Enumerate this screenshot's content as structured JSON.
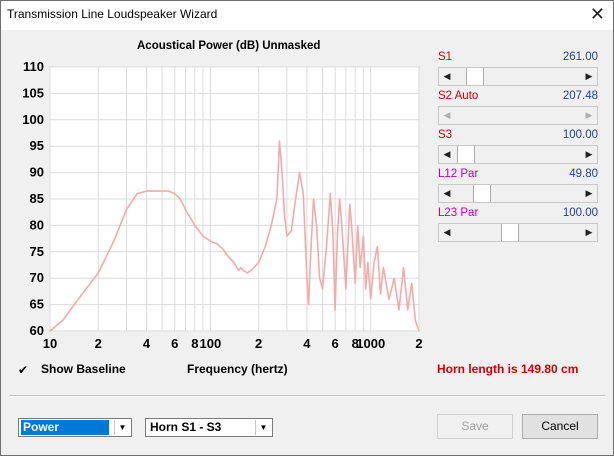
{
  "window": {
    "title": "Transmission Line Loudspeaker Wizard",
    "close_glyph": "✕"
  },
  "chart_data": {
    "type": "line",
    "title": "Acoustical Power (dB)   Unmasked",
    "xlabel": "Frequency (hertz)",
    "ylabel": "",
    "xscale": "log",
    "xlim": [
      10,
      2000
    ],
    "ylim": [
      60,
      110
    ],
    "yticks": [
      "110",
      "105",
      "100",
      "95",
      "90",
      "85",
      "80",
      "75",
      "70",
      "65",
      "60"
    ],
    "xticks": [
      "10",
      "2",
      "4",
      "6",
      "8",
      "100",
      "2",
      "4",
      "6",
      "8",
      "1000",
      "2"
    ],
    "grid": true,
    "series": [
      {
        "color": "#f4aaaa",
        "x": [
          10,
          12,
          15,
          20,
          25,
          30,
          35,
          40,
          45,
          50,
          55,
          60,
          65,
          70,
          80,
          90,
          100,
          110,
          120,
          130,
          140,
          150,
          155,
          160,
          170,
          180,
          200,
          220,
          240,
          260,
          270,
          280,
          290,
          300,
          320,
          340,
          360,
          380,
          400,
          410,
          420,
          440,
          460,
          480,
          500,
          530,
          560,
          580,
          600,
          620,
          640,
          660,
          700,
          740,
          760,
          800,
          830,
          860,
          900,
          930,
          960,
          1000,
          1050,
          1100,
          1150,
          1200,
          1300,
          1400,
          1500,
          1600,
          1700,
          1800,
          1900,
          2000
        ],
        "y": [
          60,
          62,
          66,
          71,
          77,
          83,
          86,
          86.5,
          86.5,
          86.5,
          86.5,
          86,
          85,
          83,
          80,
          78,
          77,
          76.5,
          75.5,
          74,
          73,
          71.5,
          72,
          71.5,
          71,
          71.5,
          73,
          76,
          80,
          85,
          96,
          90,
          82,
          78,
          79,
          85,
          90,
          86,
          70,
          65,
          73,
          85,
          80,
          70,
          68,
          76,
          86,
          79,
          64,
          78,
          85,
          80,
          68,
          84,
          80,
          69,
          80,
          72,
          78,
          68,
          73,
          66,
          73,
          76,
          67,
          72,
          66,
          70,
          64,
          72,
          64,
          69,
          62,
          60
        ]
      }
    ]
  },
  "sliders": [
    {
      "label": "S1",
      "value": "261.00",
      "label_color": "#d00000",
      "position": 0.1,
      "disabled": false
    },
    {
      "label": "S2  Auto",
      "value": "207.48",
      "label_color": "#d00000",
      "position": 0.0,
      "disabled": true
    },
    {
      "label": "S3",
      "value": "100.00",
      "label_color": "#d00000",
      "position": 0.02,
      "disabled": false
    },
    {
      "label": "L12  Par",
      "value": "49.80",
      "label_color": "#c000c0",
      "position": 0.17,
      "disabled": false
    },
    {
      "label": "L23  Par",
      "value": "100.00",
      "label_color": "#c000c0",
      "position": 0.43,
      "disabled": false
    }
  ],
  "slider_arrows": {
    "left": "◀",
    "right": "▶"
  },
  "baseline": {
    "label": "Show Baseline",
    "checked_glyph": "✔"
  },
  "horn_message": "Horn length is 149.80 cm",
  "mode_select": {
    "selected": "Power",
    "arrow": "▼"
  },
  "horn_select": {
    "selected": "Horn S1 - S3",
    "arrow": "▼"
  },
  "buttons": {
    "save": "Save",
    "cancel": "Cancel"
  }
}
